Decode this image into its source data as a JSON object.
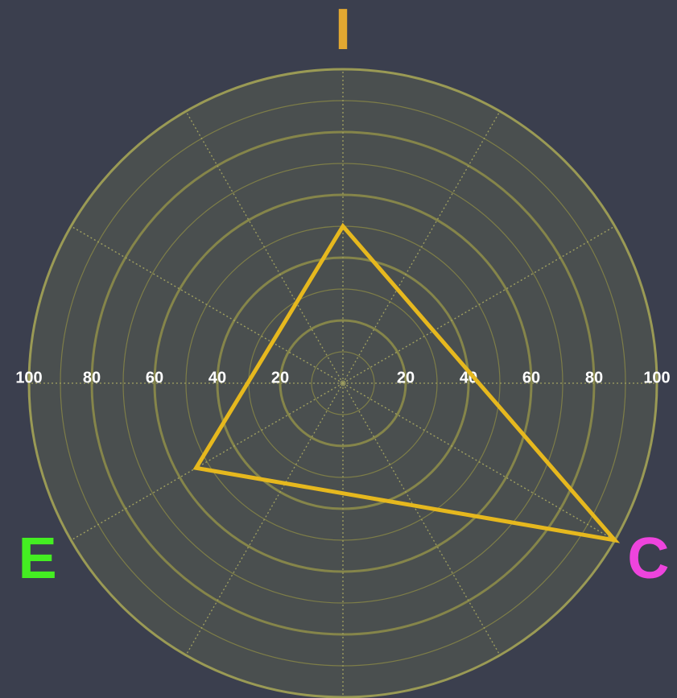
{
  "chart_data": {
    "type": "radar",
    "categories": [
      "I",
      "C",
      "E"
    ],
    "category_colors": [
      "#e2a831",
      "#ee44dd",
      "#44ee22"
    ],
    "series": [
      {
        "color": "#e6b81e",
        "values": [
          50,
          100,
          54
        ]
      }
    ],
    "rlim": [
      0,
      100
    ],
    "rticks": [
      20,
      40,
      60,
      80,
      100
    ],
    "grid": true
  }
}
